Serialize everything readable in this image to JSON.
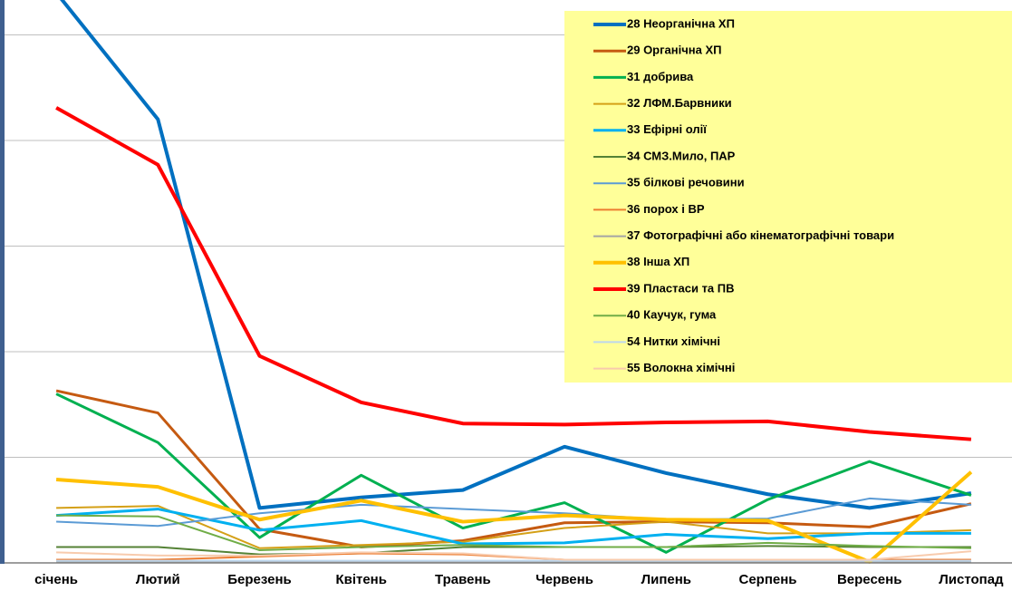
{
  "chart_data": {
    "type": "line",
    "categories": [
      "січень",
      "Лютий",
      "Березень",
      "Квітень",
      "Травень",
      "Червень",
      "Липень",
      "Серпень",
      "Вересень",
      "Листопад"
    ],
    "series": [
      {
        "name": "28  Неорганічна ХП",
        "color": "#0070c0",
        "line_width": 4,
        "values": [
          5.4,
          4.2,
          0.52,
          0.62,
          0.69,
          1.1,
          0.85,
          0.65,
          0.52,
          0.66
        ]
      },
      {
        "name": "29 Органічна ХП",
        "color": "#c55a11",
        "line_width": 3,
        "values": [
          1.63,
          1.42,
          0.32,
          0.15,
          0.21,
          0.38,
          0.39,
          0.38,
          0.34,
          0.56
        ]
      },
      {
        "name": "31 добрива",
        "color": "#00b050",
        "line_width": 3,
        "values": [
          1.6,
          1.14,
          0.24,
          0.83,
          0.33,
          0.57,
          0.1,
          0.6,
          0.96,
          0.64
        ]
      },
      {
        "name": "32 ЛФМ.Барвники",
        "color": "#d4a017",
        "line_width": 2,
        "values": [
          0.52,
          0.54,
          0.14,
          0.17,
          0.2,
          0.33,
          0.39,
          0.28,
          0.28,
          0.31
        ]
      },
      {
        "name": "33 Ефірні олії",
        "color": "#00b0f0",
        "line_width": 3,
        "values": [
          0.45,
          0.51,
          0.31,
          0.4,
          0.18,
          0.19,
          0.27,
          0.23,
          0.28,
          0.28
        ]
      },
      {
        "name": "34  СМЗ.Мило, ПАР",
        "color": "#548235",
        "line_width": 2,
        "values": [
          0.15,
          0.15,
          0.08,
          0.09,
          0.15,
          0.15,
          0.15,
          0.16,
          0.15,
          0.15
        ]
      },
      {
        "name": "35 білкові речовини",
        "color": "#5b9bd5",
        "line_width": 2,
        "values": [
          0.39,
          0.35,
          0.47,
          0.55,
          0.51,
          0.47,
          0.41,
          0.42,
          0.61,
          0.55
        ]
      },
      {
        "name": "36 порох і ВР",
        "color": "#ed7d31",
        "line_width": 2,
        "values": [
          0.03,
          0.03,
          0.06,
          0.09,
          0.08,
          0.03,
          0.03,
          0.03,
          0.03,
          0.03
        ]
      },
      {
        "name": "37 Фотографічні або кінематографічні товари",
        "color": "#a5a5a5",
        "line_width": 2,
        "values": [
          0.01,
          0.01,
          0.01,
          0.01,
          0.01,
          0.01,
          0.01,
          0.01,
          0.01,
          0.01
        ]
      },
      {
        "name": "38  Інша ХП",
        "color": "#ffc000",
        "line_width": 4,
        "values": [
          0.79,
          0.72,
          0.41,
          0.59,
          0.39,
          0.45,
          0.41,
          0.4,
          0.01,
          0.86
        ]
      },
      {
        "name": "39  Пластаси та ПВ",
        "color": "#ff0000",
        "line_width": 4,
        "values": [
          4.31,
          3.77,
          1.96,
          1.52,
          1.32,
          1.31,
          1.33,
          1.34,
          1.24,
          1.17
        ]
      },
      {
        "name": "40 Каучук, гума",
        "color": "#70ad47",
        "line_width": 2,
        "values": [
          0.45,
          0.44,
          0.12,
          0.15,
          0.17,
          0.15,
          0.15,
          0.19,
          0.16,
          0.14
        ]
      },
      {
        "name": "54 Нитки  хімічні",
        "color": "#bdd7ee",
        "line_width": 2,
        "values": [
          0.02,
          0.02,
          0.02,
          0.02,
          0.02,
          0.02,
          0.02,
          0.02,
          0.02,
          0.02
        ]
      },
      {
        "name": "55  Волокна хімічні",
        "color": "#f8cbad",
        "line_width": 2,
        "values": [
          0.1,
          0.07,
          0.07,
          0.1,
          0.09,
          0.03,
          0.03,
          0.03,
          0.03,
          0.11
        ]
      }
    ],
    "ylim": [
      0,
      5.33
    ],
    "yticks": [
      0,
      1,
      2,
      3,
      4,
      5
    ],
    "grid": true,
    "legend": "upper right"
  }
}
